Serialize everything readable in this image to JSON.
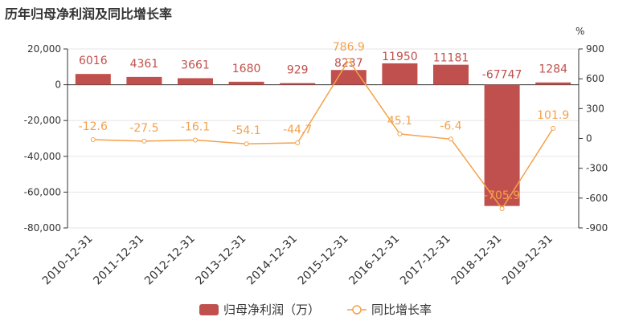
{
  "title": "历年归母净利润及同比增长率",
  "colors": {
    "bar": "#c0504d",
    "line": "#f4a14b",
    "axis": "#333333",
    "grid": "#e6e6e6"
  },
  "chart_data": {
    "type": "bar+line",
    "categories": [
      "2010-12-31",
      "2011-12-31",
      "2012-12-31",
      "2013-12-31",
      "2014-12-31",
      "2015-12-31",
      "2016-12-31",
      "2017-12-31",
      "2018-12-31",
      "2019-12-31"
    ],
    "series": [
      {
        "name": "归母净利润（万）",
        "type": "bar",
        "axis": "left",
        "values": [
          6016,
          4361,
          3661,
          1680,
          929,
          8237,
          11950,
          11181,
          -67747,
          1284
        ],
        "labels": [
          "6016",
          "4361",
          "3661",
          "1680",
          "929",
          "8237",
          "11950",
          "11181",
          "-67747",
          "1284"
        ]
      },
      {
        "name": "同比增长率",
        "type": "line",
        "axis": "right",
        "values": [
          -12.6,
          -27.5,
          -16.1,
          -54.1,
          -44.7,
          786.9,
          45.1,
          -6.4,
          -705.9,
          101.9
        ],
        "labels": [
          "-12.6",
          "-27.5",
          "-16.1",
          "-54.1",
          "-44.7",
          "786.9",
          "45.1",
          "-6.4",
          "-705.9",
          "101.9"
        ]
      }
    ],
    "y_left": {
      "ylim": [
        -80000,
        20000
      ],
      "ticks": [
        20000,
        0,
        -20000,
        -40000,
        -60000,
        -80000
      ],
      "tick_labels": [
        "20,000",
        "0",
        "-20,000",
        "-40,000",
        "-60,000",
        "-80,000"
      ]
    },
    "y_right": {
      "ylabel": "%",
      "ylim": [
        -900,
        900
      ],
      "ticks": [
        900,
        600,
        300,
        0,
        -300,
        -600,
        -900
      ],
      "tick_labels": [
        "900",
        "600",
        "300",
        "0",
        "-300",
        "-600",
        "-900"
      ]
    },
    "legend": "bottom"
  }
}
